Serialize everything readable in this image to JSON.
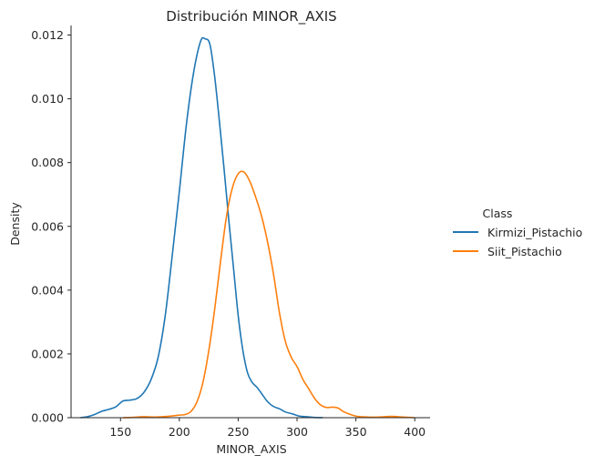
{
  "chart_data": {
    "type": "line",
    "title": "Distribución MINOR_AXIS",
    "xlabel": "MINOR_AXIS",
    "ylabel": "Density",
    "xlim": [
      108,
      413
    ],
    "ylim": [
      0,
      0.0123
    ],
    "xticks": [
      "150",
      "200",
      "250",
      "300",
      "350",
      "400"
    ],
    "xtick_values": [
      150,
      200,
      250,
      300,
      350,
      400
    ],
    "yticks": [
      "0.000",
      "0.002",
      "0.004",
      "0.006",
      "0.008",
      "0.010",
      "0.012"
    ],
    "ytick_values": [
      0,
      0.002,
      0.004,
      0.006,
      0.008,
      0.01,
      0.012
    ],
    "grid": false,
    "legend": {
      "title": "Class",
      "placement": "right"
    },
    "series": [
      {
        "name": "Kirmizi_Pistachio",
        "color": "#1f77b4",
        "x": [
          116,
          122,
          128,
          134,
          140,
          146,
          152,
          158,
          164,
          170,
          176,
          182,
          188,
          194,
          200,
          206,
          212,
          218,
          222,
          226,
          230,
          234,
          238,
          242,
          246,
          250,
          254,
          258,
          262,
          266,
          270,
          275,
          280,
          285,
          290,
          296,
          302,
          308,
          314,
          322
        ],
        "y": [
          0.0,
          3e-05,
          0.0001,
          0.0002,
          0.00026,
          0.00034,
          0.00052,
          0.00055,
          0.0006,
          0.0008,
          0.0012,
          0.0019,
          0.0032,
          0.0051,
          0.0071,
          0.0092,
          0.0108,
          0.0118,
          0.01188,
          0.0117,
          0.0107,
          0.0093,
          0.0078,
          0.0062,
          0.0047,
          0.0032,
          0.0021,
          0.0014,
          0.0011,
          0.00095,
          0.00075,
          0.0005,
          0.00035,
          0.00028,
          0.00018,
          0.00012,
          5e-05,
          3e-05,
          1e-05,
          0.0
        ]
      },
      {
        "name": "Siit_Pistachio",
        "color": "#ff7f0e",
        "x": [
          152,
          160,
          170,
          180,
          190,
          200,
          205,
          210,
          215,
          220,
          225,
          230,
          235,
          240,
          245,
          250,
          255,
          260,
          265,
          270,
          275,
          280,
          285,
          290,
          295,
          300,
          305,
          310,
          315,
          320,
          325,
          330,
          335,
          340,
          350,
          360,
          370,
          380,
          390,
          400
        ],
        "y": [
          0.0,
          1e-05,
          3e-05,
          2e-05,
          4e-05,
          8e-05,
          0.0001,
          0.0002,
          0.0005,
          0.0011,
          0.0021,
          0.0034,
          0.0049,
          0.0063,
          0.0072,
          0.00765,
          0.0077,
          0.0074,
          0.0069,
          0.0063,
          0.0055,
          0.0045,
          0.0033,
          0.0024,
          0.0019,
          0.0016,
          0.0012,
          0.0009,
          0.0006,
          0.0004,
          0.00032,
          0.00033,
          0.0003,
          0.00018,
          5e-05,
          2e-05,
          2e-05,
          4e-05,
          2e-05,
          0.0
        ]
      }
    ]
  }
}
